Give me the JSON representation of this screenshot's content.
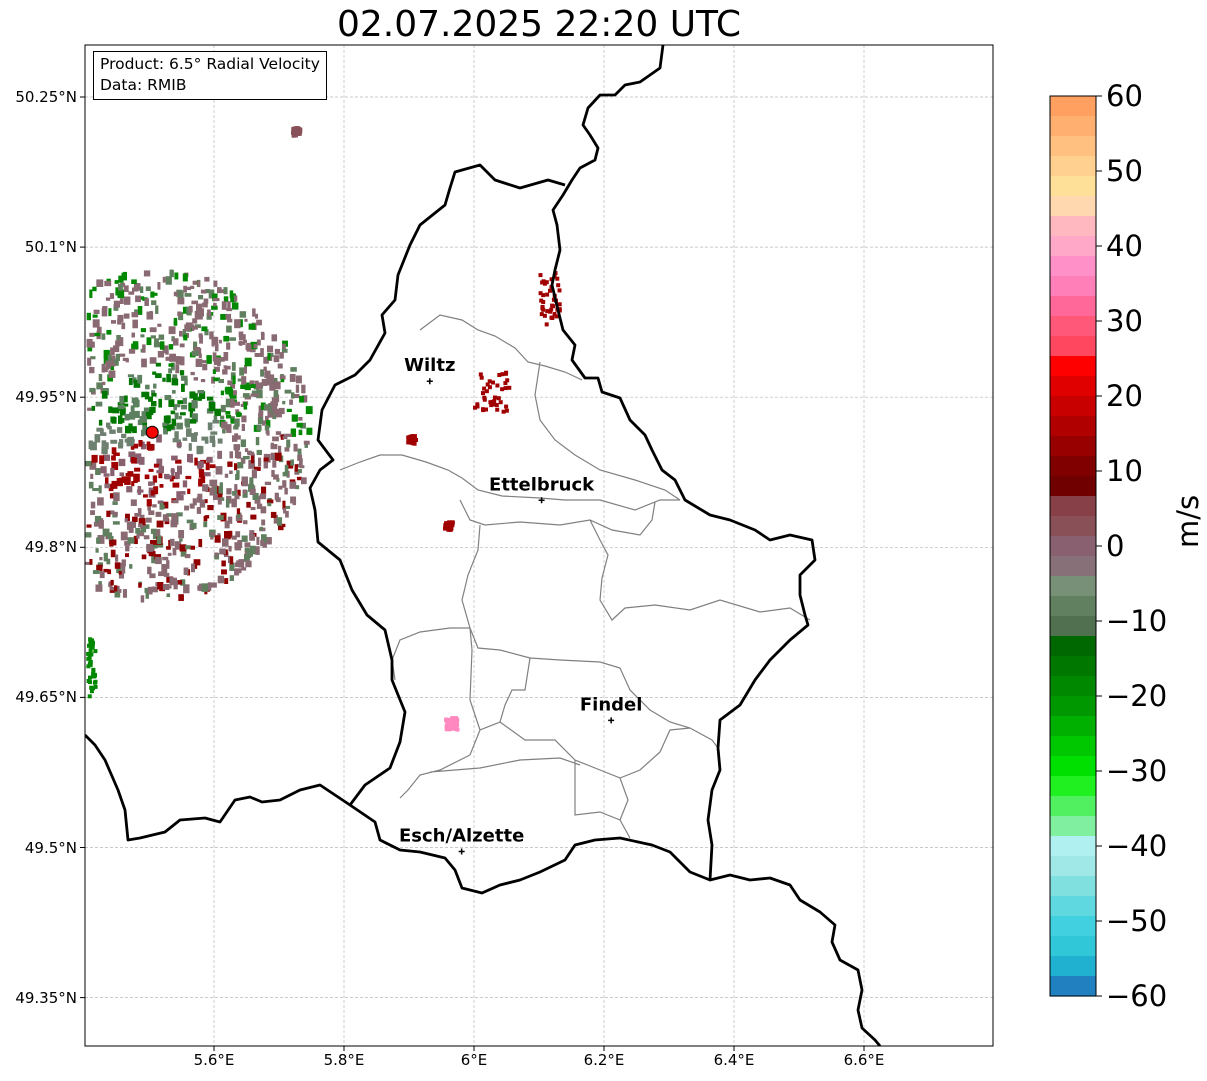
{
  "title": "02.07.2025 22:20 UTC",
  "info": {
    "product": "Product: 6.5° Radial Velocity",
    "data": "Data: RMIB"
  },
  "axes": {
    "lat_ticks": [
      "50.25°N",
      "50.1°N",
      "49.95°N",
      "49.8°N",
      "49.65°N",
      "49.5°N",
      "49.35°N"
    ],
    "lon_ticks": [
      "5.6°E",
      "5.8°E",
      "6°E",
      "6.2°E",
      "6.4°E",
      "6.6°E"
    ],
    "grid": true
  },
  "cities": [
    {
      "name": "Wiltz",
      "lat": 49.966,
      "lon": 5.932
    },
    {
      "name": "Ettelbruck",
      "lat": 49.847,
      "lon": 6.104
    },
    {
      "name": "Findel",
      "lat": 49.627,
      "lon": 6.211
    },
    {
      "name": "Esch/Alzette",
      "lat": 49.496,
      "lon": 5.981
    }
  ],
  "radar_site": {
    "lat": 49.915,
    "lon": 5.505
  },
  "colorbar": {
    "label": "m/s",
    "min": -60,
    "max": 60,
    "ticks": [
      "60",
      "50",
      "40",
      "30",
      "20",
      "10",
      "0",
      "−10",
      "−20",
      "−30",
      "−40",
      "−50",
      "−60"
    ],
    "colors": [
      "#ffa060",
      "#ffb070",
      "#ffc080",
      "#ffd090",
      "#ffe098",
      "#ffd8b0",
      "#ffb8c0",
      "#ffa8c8",
      "#ff90c8",
      "#ff80b8",
      "#ff6898",
      "#ff5878",
      "#ff4860",
      "#ff0000",
      "#e00000",
      "#c80000",
      "#b00000",
      "#980000",
      "#800000",
      "#700000",
      "#884048",
      "#8a5058",
      "#886070",
      "#887078",
      "#789078",
      "#608060",
      "#507050",
      "#006800",
      "#007800",
      "#008800",
      "#009800",
      "#00b000",
      "#00c800",
      "#00e000",
      "#20f020",
      "#50f060",
      "#80f0a0",
      "#b0f0f0",
      "#a0e8e8",
      "#80e0e0",
      "#60d8e0",
      "#40d0e0",
      "#30c8d8",
      "#20b0d0",
      "#2080c0"
    ]
  },
  "colors": {
    "border": "#000000",
    "canton_border": "#808080",
    "radar_marker": "#ff0000"
  }
}
